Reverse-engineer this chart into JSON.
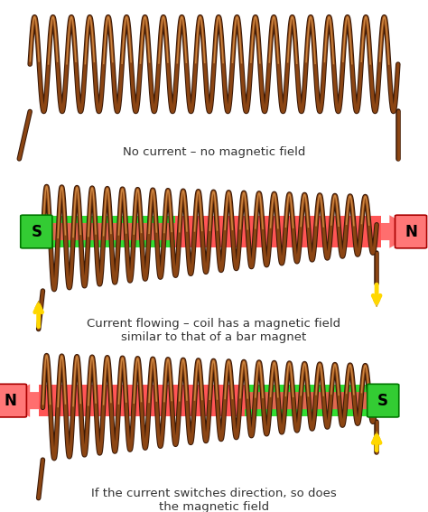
{
  "bg_color": "#ffffff",
  "coil_color": "#8B4513",
  "coil_highlight": "#CD853F",
  "coil_shadow": "#3B1A08",
  "green_color": "#33DD33",
  "red_color": "#FF5555",
  "s_box_color": "#33CC33",
  "n_box_color": "#FF7777",
  "arrow_yellow": "#FFD700",
  "arrow_yellow_dark": "#CC9900",
  "text_color": "#333333",
  "panel1_label": "No current – no magnetic field",
  "panel2_label": "Current flowing – coil has a magnetic field\nsimilar to that of a bar magnet",
  "panel3_label": "If the current switches direction, so does\nthe magnetic field"
}
